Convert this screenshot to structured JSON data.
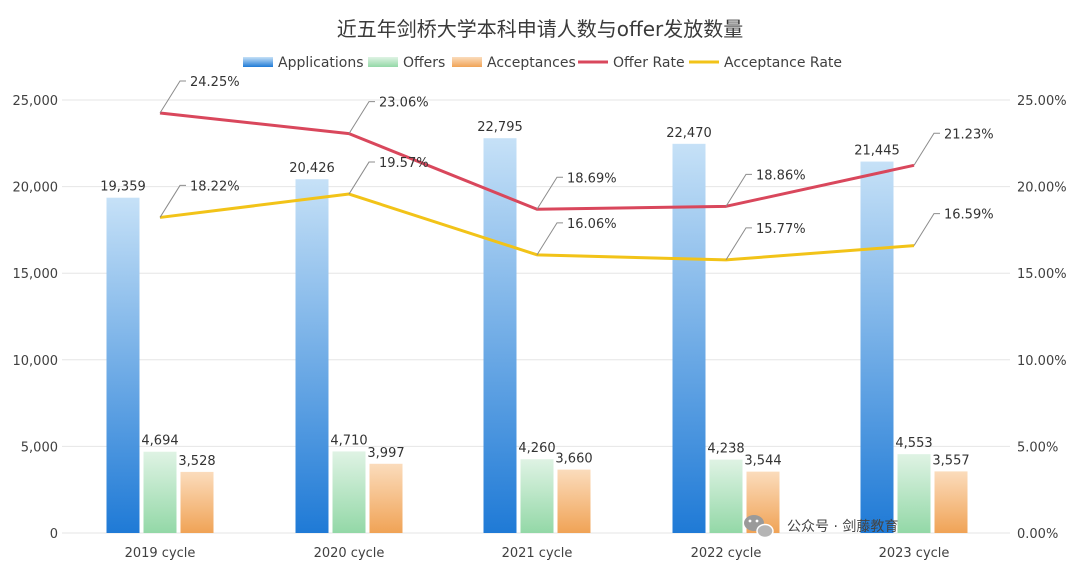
{
  "chart_data": {
    "type": "bar",
    "title": "近五年剑桥大学本科申请人数与offer发放数量",
    "categories": [
      "2019 cycle",
      "2020 cycle",
      "2021 cycle",
      "2022 cycle",
      "2023 cycle"
    ],
    "series": [
      {
        "name": "Applications",
        "kind": "bar",
        "axis": "left",
        "color": "#2f86d8",
        "values": [
          19359,
          20426,
          22795,
          22470,
          21445
        ]
      },
      {
        "name": "Offers",
        "kind": "bar",
        "axis": "left",
        "color": "#a9dfb6",
        "values": [
          4694,
          4710,
          4260,
          4238,
          4553
        ]
      },
      {
        "name": "Acceptances",
        "kind": "bar",
        "axis": "left",
        "color": "#f4b475",
        "values": [
          3528,
          3997,
          3660,
          3544,
          3557
        ]
      },
      {
        "name": "Offer Rate",
        "kind": "line",
        "axis": "right",
        "color": "#d9475c",
        "values": [
          24.25,
          23.06,
          18.69,
          18.86,
          21.23
        ],
        "labels": [
          "24.25%",
          "23.06%",
          "18.69%",
          "18.86%",
          "21.23%"
        ]
      },
      {
        "name": "Acceptance Rate",
        "kind": "line",
        "axis": "right",
        "color": "#f2c318",
        "values": [
          18.22,
          19.57,
          16.06,
          15.77,
          16.59
        ],
        "labels": [
          "18.22%",
          "19.57%",
          "16.06%",
          "15.77%",
          "16.59%"
        ]
      }
    ],
    "bar_labels": [
      [
        "19,359",
        "20,426",
        "22,795",
        "22,470",
        "21,445"
      ],
      [
        "4,694",
        "4,710",
        "4,260",
        "4,238",
        "4,553"
      ],
      [
        "3,528",
        "3,997",
        "3,660",
        "3,544",
        "3,557"
      ]
    ],
    "ylim_left": [
      0,
      25000
    ],
    "ylim_right": [
      0,
      25
    ],
    "left_ticks": [
      "0",
      "5,000",
      "10,000",
      "15,000",
      "20,000",
      "25,000"
    ],
    "right_ticks": [
      "0.00%",
      "5.00%",
      "10.00%",
      "15.00%",
      "20.00%",
      "25.00%"
    ],
    "grid": true,
    "legend_position": "top"
  },
  "watermark": {
    "text": "公众号 · 剑藤教育",
    "logo_text": "剑藤"
  }
}
